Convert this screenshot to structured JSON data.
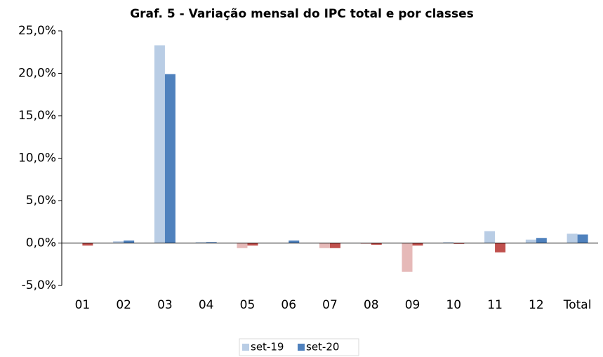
{
  "chart_data": {
    "type": "bar",
    "title": "Graf. 5 - Variação mensal do IPC total e por classes",
    "categories": [
      "01",
      "02",
      "03",
      "04",
      "05",
      "06",
      "07",
      "08",
      "09",
      "10",
      "11",
      "12",
      "Total"
    ],
    "series": [
      {
        "name": "set-19",
        "color": "#b9cde5",
        "negative_color": "#e6b9b8",
        "values": [
          0.0,
          0.2,
          23.3,
          0.1,
          -0.6,
          0.0,
          -0.6,
          -0.1,
          -3.4,
          0.1,
          1.4,
          0.4,
          1.1
        ]
      },
      {
        "name": "set-20",
        "color": "#4f81bd",
        "negative_color": "#c0504d",
        "values": [
          -0.3,
          0.3,
          19.9,
          0.1,
          -0.3,
          0.3,
          -0.6,
          -0.2,
          -0.3,
          -0.1,
          -1.1,
          0.6,
          1.0
        ]
      }
    ],
    "ylim": [
      -5,
      25
    ],
    "yticks": [
      {
        "value": -5,
        "label": "-5,0%"
      },
      {
        "value": 0,
        "label": "0,0%"
      },
      {
        "value": 5,
        "label": "5,0%"
      },
      {
        "value": 10,
        "label": "10,0%"
      },
      {
        "value": 15,
        "label": "15,0%"
      },
      {
        "value": 20,
        "label": "20,0%"
      },
      {
        "value": 25,
        "label": "25,0%"
      }
    ],
    "grid": false,
    "legend": "bottom"
  }
}
